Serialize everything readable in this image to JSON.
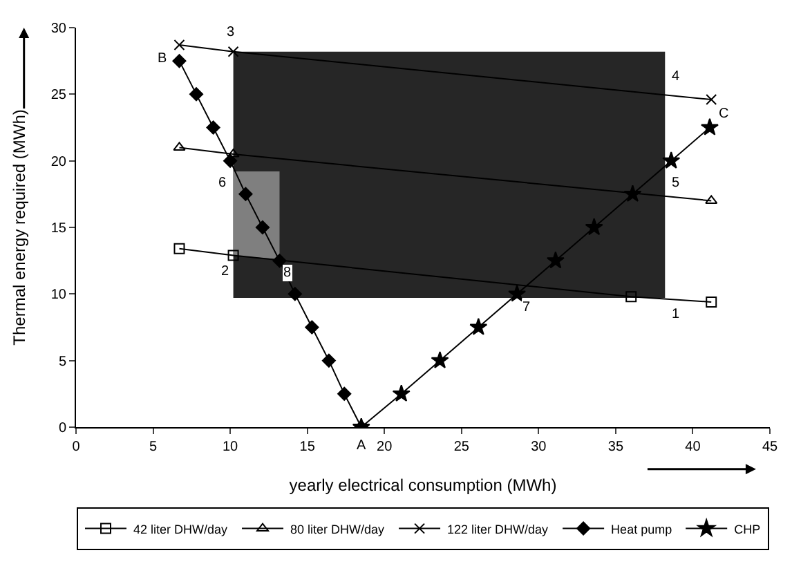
{
  "chart_data": {
    "type": "line",
    "xlabel": "yearly electrical consumption (MWh)",
    "ylabel": "Thermal energy required (MWh)",
    "xlim": [
      0,
      45
    ],
    "xticks": [
      0,
      5,
      10,
      15,
      20,
      25,
      30,
      35,
      40,
      45
    ],
    "ylim": [
      0,
      30
    ],
    "yticks": [
      0,
      5,
      10,
      15,
      20,
      25,
      30
    ],
    "grid": false,
    "legend": "bottom",
    "series": [
      {
        "name": "42 liter DHW/day",
        "color": "#000000",
        "marker": "square",
        "x": [
          6.7,
          10.2,
          36.0,
          41.2
        ],
        "values": [
          13.4,
          12.9,
          9.8,
          9.4
        ]
      },
      {
        "name": "80 liter DHW/day",
        "color": "#000000",
        "marker": "triangle",
        "x": [
          6.7,
          10.2,
          41.2
        ],
        "values": [
          21.0,
          20.5,
          17.0
        ]
      },
      {
        "name": "122 liter DHW/day",
        "color": "#000000",
        "marker": "cross",
        "x": [
          6.7,
          10.2,
          41.2
        ],
        "values": [
          28.7,
          28.2,
          24.6
        ]
      },
      {
        "name": "Heat pump",
        "color": "#000000",
        "marker": "diamond",
        "x": [
          6.7,
          7.8,
          8.9,
          10.0,
          11.0,
          12.1,
          13.2,
          14.2,
          15.3,
          16.4,
          17.4,
          18.5
        ],
        "values": [
          27.5,
          25,
          22.5,
          20,
          17.5,
          15,
          12.5,
          10,
          7.5,
          5,
          2.5,
          0
        ]
      },
      {
        "name": "CHP",
        "color": "#000000",
        "marker": "star",
        "x": [
          18.5,
          21.1,
          23.6,
          26.1,
          28.6,
          31.1,
          33.6,
          36.1,
          38.6,
          41.1
        ],
        "values": [
          0,
          2.5,
          5,
          7.5,
          10,
          12.5,
          15,
          17.5,
          20,
          22.5
        ]
      }
    ],
    "annotations": [
      {
        "text": "1",
        "x": 38.2,
        "y": 9.7
      },
      {
        "text": "2",
        "x": 10.2,
        "y": 12.9
      },
      {
        "text": "3",
        "x": 10.2,
        "y": 28.2
      },
      {
        "text": "4",
        "x": 38.2,
        "y": 24.9
      },
      {
        "text": "5",
        "x": 38.2,
        "y": 19.8
      },
      {
        "text": "6",
        "x": 10.2,
        "y": 19.2
      },
      {
        "text": "7",
        "x": 29.0,
        "y": 10.4
      },
      {
        "text": "8",
        "x": 13.2,
        "y": 12.6
      },
      {
        "text": "A",
        "x": 18.5,
        "y": 0
      },
      {
        "text": "B",
        "x": 6.7,
        "y": 27.5
      },
      {
        "text": "C",
        "x": 41.1,
        "y": 22.5
      }
    ]
  }
}
